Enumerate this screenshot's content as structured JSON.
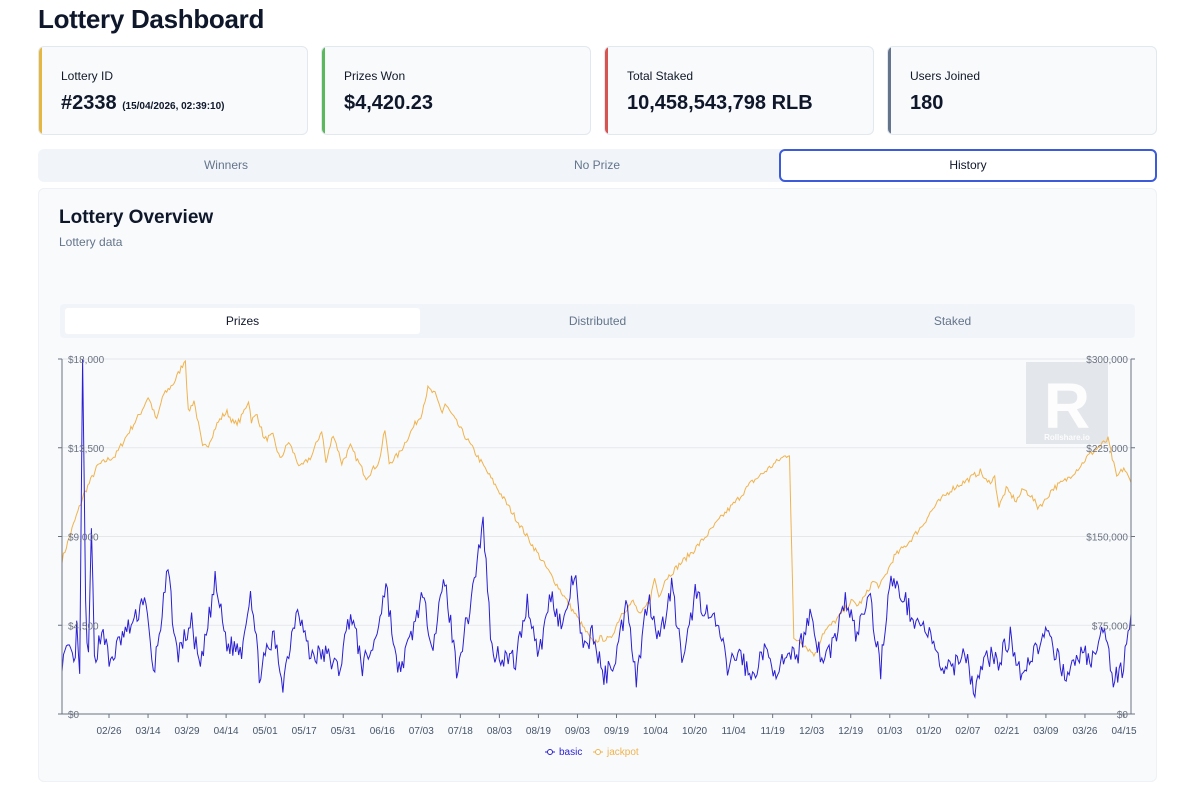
{
  "page": {
    "title": "Lottery Dashboard"
  },
  "stats": [
    {
      "label": "Lottery ID",
      "value": "#2338",
      "suffix": "(15/04/2026, 02:39:10)",
      "color": "#e6b73c"
    },
    {
      "label": "Prizes Won",
      "value": "$4,420.23",
      "color": "#5cb85c"
    },
    {
      "label": "Total Staked",
      "value": "10,458,543,798 RLB",
      "color": "#d9534f"
    },
    {
      "label": "Users Joined",
      "value": "180",
      "color": "#64748b"
    }
  ],
  "main_tabs": {
    "items": [
      "Winners",
      "No Prize",
      "History"
    ],
    "active": "History"
  },
  "overview": {
    "title": "Lottery Overview",
    "subtitle": "Lottery data",
    "sub_tabs": {
      "items": [
        "Prizes",
        "Distributed",
        "Staked"
      ],
      "active": "Prizes"
    }
  },
  "watermark": {
    "letter": "R",
    "text": "Rollshare.io"
  },
  "colors": {
    "basic": "#2b1fd1",
    "jackpot": "#f0b34e",
    "grid": "#e5e7eb"
  },
  "chart_data": {
    "type": "line",
    "x_ticks": [
      "02/26",
      "03/14",
      "03/29",
      "04/14",
      "05/01",
      "05/17",
      "05/31",
      "06/16",
      "07/03",
      "07/18",
      "08/03",
      "08/19",
      "09/03",
      "09/19",
      "10/04",
      "10/20",
      "11/04",
      "11/19",
      "12/03",
      "12/19",
      "01/03",
      "01/20",
      "02/07",
      "02/21",
      "03/09",
      "03/26",
      "04/15"
    ],
    "y_left": {
      "ticks": [
        "$0",
        "$4,500",
        "$9,000",
        "$13,500",
        "$18,000"
      ],
      "range": [
        0,
        18000
      ]
    },
    "y_right": {
      "ticks": [
        "$0",
        "$75,000",
        "$150,000",
        "$225,000",
        "$300,000"
      ],
      "range": [
        0,
        300000
      ]
    },
    "series": [
      {
        "name": "basic",
        "axis": "left",
        "anchors": [
          [
            0,
            2700
          ],
          [
            3,
            3200
          ],
          [
            4,
            2300
          ],
          [
            5,
            4200
          ],
          [
            6,
            1700
          ],
          [
            7,
            18000
          ],
          [
            8,
            5500
          ],
          [
            9,
            2600
          ],
          [
            10,
            9500
          ],
          [
            11,
            2800
          ],
          [
            14,
            4400
          ],
          [
            16,
            2500
          ],
          [
            20,
            3800
          ],
          [
            25,
            4800
          ],
          [
            28,
            6100
          ],
          [
            31,
            2000
          ],
          [
            36,
            7200
          ],
          [
            39,
            3000
          ],
          [
            44,
            4600
          ],
          [
            47,
            2200
          ],
          [
            52,
            6700
          ],
          [
            56,
            3500
          ],
          [
            61,
            3300
          ],
          [
            64,
            6400
          ],
          [
            67,
            2100
          ],
          [
            72,
            3900
          ],
          [
            75,
            1600
          ],
          [
            80,
            5600
          ],
          [
            84,
            3000
          ],
          [
            90,
            3000
          ],
          [
            94,
            2200
          ],
          [
            98,
            5200
          ],
          [
            102,
            2400
          ],
          [
            106,
            3500
          ],
          [
            110,
            6600
          ],
          [
            114,
            2000
          ],
          [
            118,
            3600
          ],
          [
            122,
            5900
          ],
          [
            126,
            3700
          ],
          [
            130,
            6800
          ],
          [
            134,
            2300
          ],
          [
            138,
            5000
          ],
          [
            143,
            9700
          ],
          [
            146,
            3200
          ],
          [
            150,
            2900
          ],
          [
            154,
            2700
          ],
          [
            158,
            5700
          ],
          [
            162,
            3000
          ],
          [
            166,
            6100
          ],
          [
            170,
            4300
          ],
          [
            174,
            7200
          ],
          [
            177,
            3000
          ],
          [
            180,
            4200
          ],
          [
            184,
            1800
          ],
          [
            188,
            2900
          ],
          [
            192,
            5800
          ],
          [
            195,
            1700
          ],
          [
            199,
            6000
          ],
          [
            203,
            3800
          ],
          [
            207,
            6500
          ],
          [
            211,
            2400
          ],
          [
            215,
            6200
          ],
          [
            219,
            5100
          ],
          [
            223,
            4300
          ],
          [
            226,
            2300
          ],
          [
            230,
            3200
          ],
          [
            234,
            1700
          ],
          [
            238,
            3200
          ],
          [
            242,
            2300
          ],
          [
            246,
            2600
          ],
          [
            250,
            3100
          ],
          [
            254,
            5200
          ],
          [
            258,
            2600
          ],
          [
            262,
            3600
          ],
          [
            266,
            5800
          ],
          [
            270,
            3900
          ],
          [
            274,
            6200
          ],
          [
            278,
            2300
          ],
          [
            281,
            6800
          ],
          [
            285,
            6100
          ],
          [
            289,
            4900
          ],
          [
            294,
            4200
          ],
          [
            298,
            2500
          ],
          [
            302,
            2100
          ],
          [
            306,
            3400
          ],
          [
            310,
            1200
          ],
          [
            314,
            3000
          ],
          [
            318,
            2700
          ],
          [
            322,
            3900
          ],
          [
            326,
            2000
          ],
          [
            330,
            3200
          ],
          [
            334,
            4000
          ],
          [
            338,
            2800
          ],
          [
            342,
            1900
          ],
          [
            346,
            3200
          ],
          [
            350,
            2700
          ],
          [
            354,
            4300
          ],
          [
            357,
            1700
          ],
          [
            360,
            2200
          ],
          [
            363,
            5300
          ]
        ]
      },
      {
        "name": "jackpot",
        "axis": "right",
        "anchors": [
          [
            0,
            130000
          ],
          [
            8,
            160000
          ],
          [
            15,
            185000
          ],
          [
            25,
            210000
          ],
          [
            32,
            215000
          ],
          [
            37,
            218000
          ],
          [
            45,
            235000
          ],
          [
            55,
            255000
          ],
          [
            60,
            268000
          ],
          [
            62,
            262000
          ],
          [
            66,
            248000
          ],
          [
            70,
            268000
          ],
          [
            78,
            280000
          ],
          [
            82,
            290000
          ],
          [
            86,
            300000
          ],
          [
            88,
            255000
          ],
          [
            92,
            265000
          ],
          [
            98,
            225000
          ],
          [
            102,
            228000
          ],
          [
            108,
            245000
          ],
          [
            112,
            252000
          ],
          [
            115,
            255000
          ],
          [
            120,
            245000
          ],
          [
            124,
            248000
          ],
          [
            130,
            265000
          ],
          [
            132,
            248000
          ],
          [
            136,
            253000
          ],
          [
            141,
            232000
          ],
          [
            147,
            235000
          ],
          [
            152,
            215000
          ],
          [
            158,
            230000
          ],
          [
            166,
            208000
          ],
          [
            174,
            218000
          ],
          [
            181,
            240000
          ],
          [
            184,
            212000
          ],
          [
            189,
            237000
          ],
          [
            195,
            212000
          ],
          [
            201,
            226000
          ],
          [
            212,
            200000
          ],
          [
            221,
            213000
          ],
          [
            225,
            240000
          ],
          [
            228,
            212000
          ],
          [
            235,
            220000
          ],
          [
            246,
            245000
          ],
          [
            250,
            252000
          ],
          [
            255,
            275000
          ],
          [
            260,
            270000
          ],
          [
            265,
            255000
          ],
          [
            267,
            262000
          ],
          [
            370,
            60000
          ],
          [
            375,
            64000
          ],
          [
            382,
            63000
          ],
          [
            390,
            85000
          ],
          [
            398,
            95000
          ],
          [
            403,
            83000
          ],
          [
            410,
            97000
          ],
          [
            413,
            115000
          ],
          [
            416,
            99000
          ],
          [
            420,
            113000
          ],
          [
            430,
            126000
          ],
          [
            440,
            138000
          ],
          [
            450,
            152000
          ],
          [
            460,
            167000
          ],
          [
            470,
            180000
          ],
          [
            480,
            195000
          ],
          [
            490,
            205000
          ],
          [
            500,
            215000
          ],
          [
            507,
            220000
          ],
          [
            510,
            62000
          ],
          [
            514,
            63000
          ],
          [
            520,
            55000
          ],
          [
            525,
            50000
          ],
          [
            530,
            68000
          ],
          [
            540,
            80000
          ],
          [
            550,
            95000
          ],
          [
            555,
            92000
          ],
          [
            560,
            100000
          ],
          [
            565,
            112000
          ],
          [
            570,
            108000
          ],
          [
            575,
            120000
          ],
          [
            580,
            133000
          ],
          [
            590,
            145000
          ],
          [
            600,
            160000
          ],
          [
            605,
            170000
          ],
          [
            610,
            178000
          ],
          [
            620,
            190000
          ],
          [
            630,
            197000
          ],
          [
            640,
            205000
          ],
          [
            645,
            195000
          ],
          [
            650,
            200000
          ],
          [
            653,
            175000
          ],
          [
            658,
            190000
          ],
          [
            665,
            180000
          ],
          [
            670,
            190000
          ],
          [
            675,
            185000
          ],
          [
            680,
            175000
          ],
          [
            685,
            180000
          ],
          [
            690,
            190000
          ],
          [
            700,
            198000
          ],
          [
            710,
            210000
          ],
          [
            715,
            218000
          ],
          [
            722,
            225000
          ],
          [
            729,
            232000
          ],
          [
            735,
            200000
          ],
          [
            740,
            208000
          ],
          [
            745,
            195000
          ]
        ]
      }
    ],
    "legend": [
      "basic",
      "jackpot"
    ],
    "legend_position": "bottom-center"
  }
}
